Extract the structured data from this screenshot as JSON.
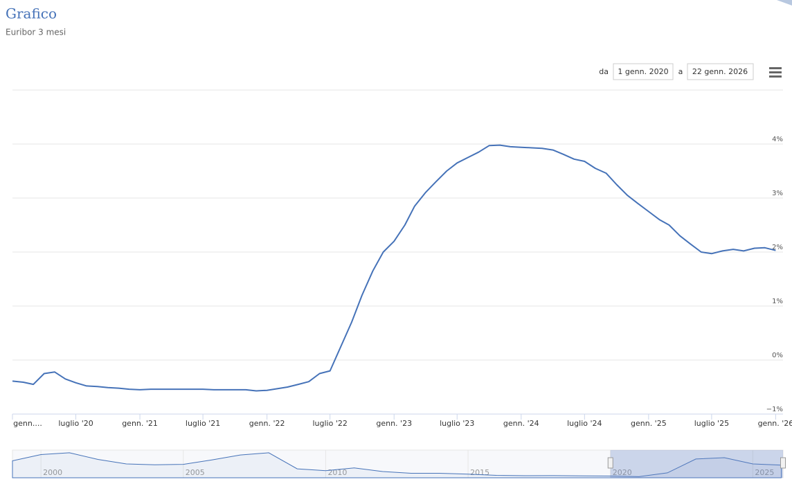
{
  "range_selector": {
    "from_label": "da",
    "from": "1 genn. 2020",
    "to_label": "a",
    "to": "22 genn. 2026"
  },
  "chart_data": [
    {
      "type": "line",
      "title": "Grafico",
      "subtitle": "Euribor 3 mesi",
      "color": "#4572b8",
      "grid": true,
      "x": [
        "2020-01",
        "2020-02",
        "2020-03",
        "2020-04",
        "2020-05",
        "2020-06",
        "2020-07",
        "2020-08",
        "2020-09",
        "2020-10",
        "2020-11",
        "2020-12",
        "2021-01",
        "2021-02",
        "2021-03",
        "2021-04",
        "2021-05",
        "2021-06",
        "2021-07",
        "2021-08",
        "2021-09",
        "2021-10",
        "2021-11",
        "2021-12",
        "2022-01",
        "2022-02",
        "2022-03",
        "2022-04",
        "2022-05",
        "2022-06",
        "2022-07",
        "2022-08",
        "2022-09",
        "2022-10",
        "2022-11",
        "2022-12",
        "2023-01",
        "2023-02",
        "2023-03",
        "2023-04",
        "2023-05",
        "2023-06",
        "2023-07",
        "2023-08",
        "2023-09",
        "2023-10",
        "2023-11",
        "2023-12",
        "2024-01",
        "2024-02",
        "2024-03",
        "2024-04",
        "2024-05",
        "2024-06",
        "2024-07",
        "2024-08",
        "2024-09",
        "2024-10",
        "2024-11",
        "2024-12",
        "2025-01",
        "2025-02",
        "2025-03",
        "2025-04",
        "2025-05",
        "2025-06",
        "2025-07",
        "2025-08",
        "2025-09",
        "2025-10",
        "2025-11",
        "2025-12",
        "2026-01"
      ],
      "values": [
        -0.39,
        -0.41,
        -0.45,
        -0.25,
        -0.22,
        -0.35,
        -0.42,
        -0.48,
        -0.49,
        -0.51,
        -0.52,
        -0.54,
        -0.55,
        -0.54,
        -0.54,
        -0.54,
        -0.54,
        -0.54,
        -0.54,
        -0.55,
        -0.55,
        -0.55,
        -0.55,
        -0.57,
        -0.56,
        -0.53,
        -0.5,
        -0.45,
        -0.4,
        -0.25,
        -0.2,
        0.25,
        0.7,
        1.2,
        1.65,
        2.0,
        2.2,
        2.5,
        2.85,
        3.1,
        3.3,
        3.5,
        3.65,
        3.75,
        3.85,
        3.97,
        3.98,
        3.95,
        3.94,
        3.93,
        3.92,
        3.89,
        3.81,
        3.72,
        3.68,
        3.55,
        3.46,
        3.25,
        3.05,
        2.9,
        2.75,
        2.6,
        2.5,
        2.3,
        2.15,
        2.0,
        1.97,
        2.02,
        2.05,
        2.02,
        2.07,
        2.08,
        2.03
      ],
      "xlim": [
        "2020-01-01",
        "2026-01-22"
      ],
      "xticks": [
        {
          "value": "2020-01",
          "label": "genn...."
        },
        {
          "value": "2020-07",
          "label": "luglio '20"
        },
        {
          "value": "2021-01",
          "label": "genn. '21"
        },
        {
          "value": "2021-07",
          "label": "luglio '21"
        },
        {
          "value": "2022-01",
          "label": "genn. '22"
        },
        {
          "value": "2022-07",
          "label": "luglio '22"
        },
        {
          "value": "2023-01",
          "label": "genn. '23"
        },
        {
          "value": "2023-07",
          "label": "luglio '23"
        },
        {
          "value": "2024-01",
          "label": "genn. '24"
        },
        {
          "value": "2024-07",
          "label": "luglio '24"
        },
        {
          "value": "2025-01",
          "label": "genn. '25"
        },
        {
          "value": "2025-07",
          "label": "luglio '25"
        },
        {
          "value": "2026-01",
          "label": "genn. '26"
        }
      ],
      "ylim": [
        -1,
        5
      ],
      "yticks": [
        {
          "value": -1,
          "label": "−1%"
        },
        {
          "value": 0,
          "label": "0%"
        },
        {
          "value": 1,
          "label": "1%"
        },
        {
          "value": 2,
          "label": "2%"
        },
        {
          "value": 3,
          "label": "3%"
        },
        {
          "value": 4,
          "label": "4%"
        }
      ]
    },
    {
      "type": "area",
      "color": "#4572b8",
      "x": [
        1999,
        2000,
        2001,
        2002,
        2003,
        2004,
        2005,
        2006,
        2007,
        2008,
        2009,
        2010,
        2011,
        2012,
        2013,
        2014,
        2015,
        2016,
        2017,
        2018,
        2019,
        2020,
        2021,
        2022,
        2023,
        2024,
        2025,
        2026
      ],
      "values": [
        3.0,
        4.4,
        4.8,
        3.3,
        2.3,
        2.1,
        2.2,
        3.2,
        4.3,
        4.8,
        1.2,
        0.8,
        1.4,
        0.6,
        0.2,
        0.2,
        0.0,
        -0.26,
        -0.33,
        -0.32,
        -0.36,
        -0.42,
        -0.55,
        0.3,
        3.4,
        3.7,
        2.3,
        2.03
      ],
      "xlim": [
        1999,
        2026.06
      ],
      "xticks": [
        2000,
        2005,
        2010,
        2015,
        2020,
        2025
      ],
      "ylim": [
        -0.8,
        5.4
      ],
      "selected_from": 2020
    }
  ]
}
